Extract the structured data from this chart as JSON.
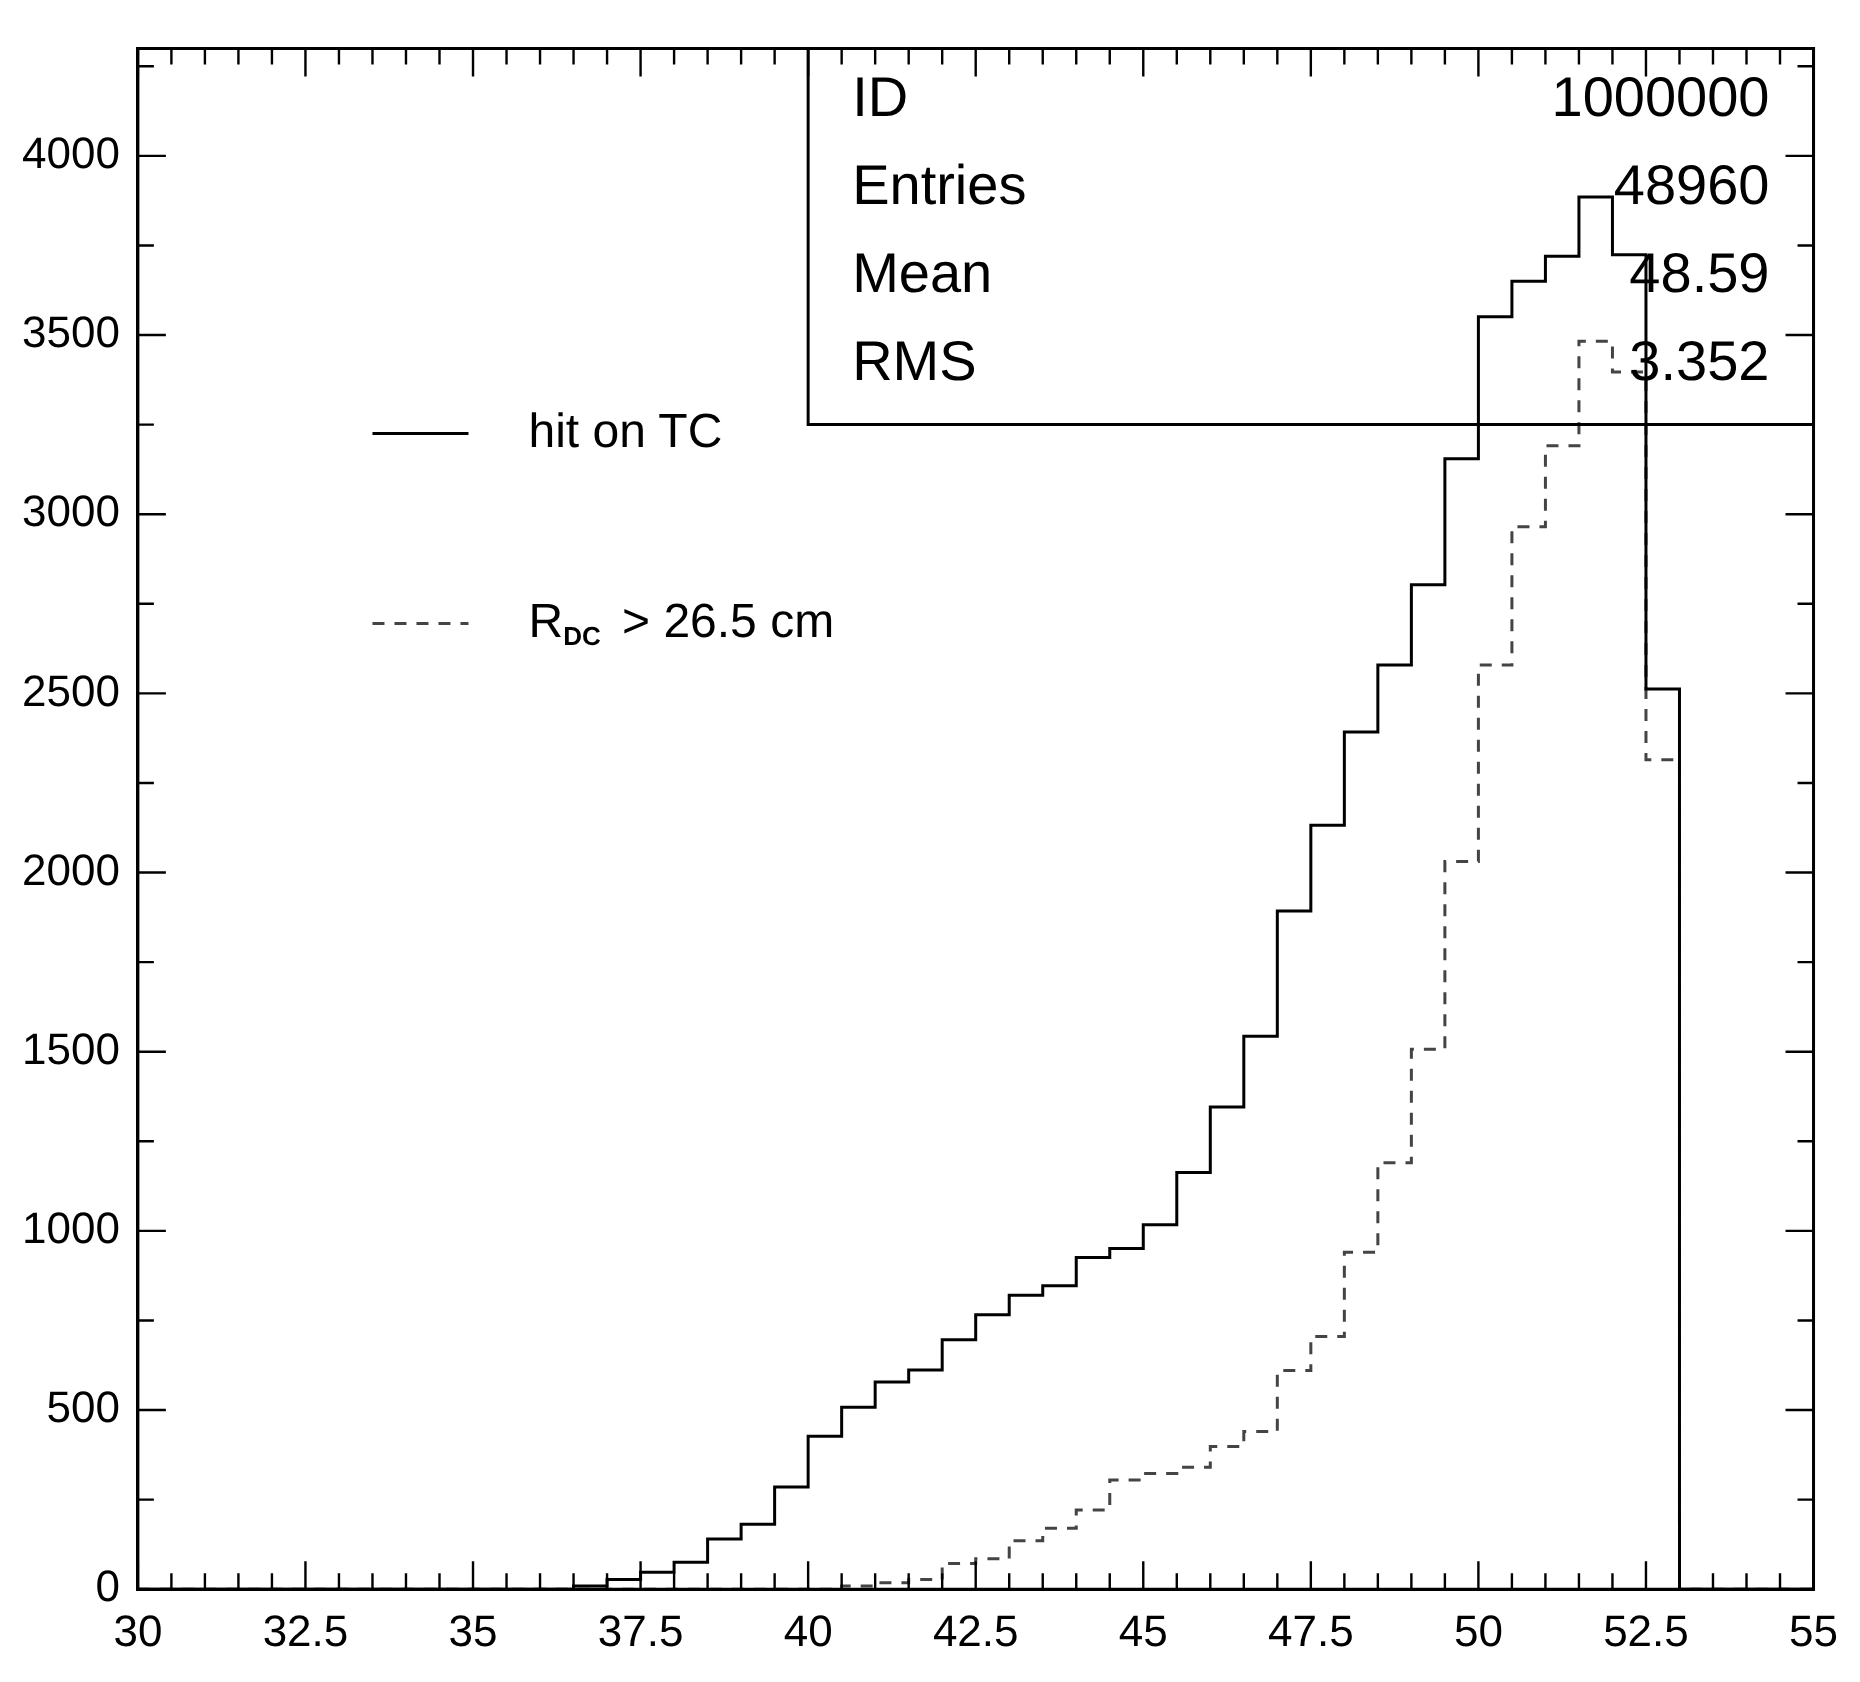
{
  "chart_data": {
    "type": "histogram",
    "bins": [
      30,
      30.5,
      31,
      31.5,
      32,
      32.5,
      33,
      33.5,
      34,
      34.5,
      35,
      35.5,
      36,
      36.5,
      37,
      37.5,
      38,
      38.5,
      39,
      39.5,
      40,
      40.5,
      41,
      41.5,
      42,
      42.5,
      43,
      43.5,
      44,
      44.5,
      45,
      45.5,
      46,
      46.5,
      47,
      47.5,
      48,
      48.5,
      49,
      49.5,
      50,
      50.5,
      51,
      51.5,
      52,
      52.5,
      53,
      53.5,
      54,
      54.5,
      55
    ],
    "series": [
      {
        "name": "hit on TC",
        "color": "#000000",
        "line_style": "solid",
        "values": [
          0,
          0,
          0,
          0,
          0,
          0,
          0,
          0,
          0,
          0,
          0,
          0,
          0,
          9,
          27,
          47,
          75,
          140,
          181,
          285,
          427,
          508,
          578,
          612,
          696,
          766,
          820,
          847,
          926,
          951,
          1017,
          1163,
          1346,
          1543,
          1893,
          2132,
          2392,
          2579,
          2803,
          3155,
          3551,
          3650,
          3720,
          3885,
          3724,
          2512,
          0,
          0,
          0,
          0
        ]
      },
      {
        "name": "R$_{DC}$ > 26.5 cm",
        "color": "#444444",
        "line_style": "dashed",
        "values": [
          0,
          0,
          0,
          0,
          0,
          0,
          0,
          0,
          0,
          0,
          0,
          0,
          0,
          0,
          0,
          0,
          0,
          0,
          0,
          0,
          0,
          9,
          18,
          27,
          72,
          85,
          135,
          170,
          221,
          305,
          323,
          340,
          398,
          440,
          610,
          705,
          940,
          1190,
          1507,
          2031,
          2579,
          2965,
          3191,
          3483,
          3397,
          2315,
          0,
          0,
          0,
          0
        ]
      }
    ],
    "xlim": [
      30,
      55
    ],
    "xticks": [
      30,
      {
        "value": 30.5,
        "label": null
      },
      {
        "value": 31,
        "label": null
      },
      {
        "value": 31.5,
        "label": null
      },
      {
        "value": 32,
        "label": null
      },
      32.5,
      {
        "value": 33,
        "label": null
      },
      {
        "value": 33.5,
        "label": null
      },
      {
        "value": 34,
        "label": null
      },
      {
        "value": 34.5,
        "label": null
      },
      35,
      {
        "value": 35.5,
        "label": null
      },
      {
        "value": 36,
        "label": null
      },
      {
        "value": 36.5,
        "label": null
      },
      {
        "value": 37,
        "label": null
      },
      37.5,
      {
        "value": 38,
        "label": null
      },
      {
        "value": 38.5,
        "label": null
      },
      {
        "value": 39,
        "label": null
      },
      {
        "value": 39.5,
        "label": null
      },
      40,
      {
        "value": 40.5,
        "label": null
      },
      {
        "value": 41,
        "label": null
      },
      {
        "value": 41.5,
        "label": null
      },
      {
        "value": 42,
        "label": null
      },
      42.5,
      {
        "value": 43,
        "label": null
      },
      {
        "value": 43.5,
        "label": null
      },
      {
        "value": 44,
        "label": null
      },
      {
        "value": 44.5,
        "label": null
      },
      45,
      {
        "value": 45.5,
        "label": null
      },
      {
        "value": 46,
        "label": null
      },
      {
        "value": 46.5,
        "label": null
      },
      {
        "value": 47,
        "label": null
      },
      47.5,
      {
        "value": 48,
        "label": null
      },
      {
        "value": 48.5,
        "label": null
      },
      {
        "value": 49,
        "label": null
      },
      {
        "value": 49.5,
        "label": null
      },
      50,
      {
        "value": 50.5,
        "label": null
      },
      {
        "value": 51,
        "label": null
      },
      {
        "value": 51.5,
        "label": null
      },
      {
        "value": 52,
        "label": null
      },
      52.5,
      {
        "value": 53,
        "label": null
      },
      {
        "value": 53.5,
        "label": null
      },
      {
        "value": 54,
        "label": null
      },
      {
        "value": 54.5,
        "label": null
      },
      55
    ],
    "ylim": [
      0,
      4300
    ],
    "yticks": [
      0,
      {
        "value": 250,
        "label": null
      },
      500,
      {
        "value": 750,
        "label": null
      },
      1000,
      {
        "value": 1250,
        "label": null
      },
      1500,
      {
        "value": 1750,
        "label": null
      },
      2000,
      {
        "value": 2250,
        "label": null
      },
      2500,
      {
        "value": 2750,
        "label": null
      },
      3000,
      {
        "value": 3250,
        "label": null
      },
      3500,
      {
        "value": 3750,
        "label": null
      },
      4000,
      {
        "value": 4250,
        "label": null
      }
    ],
    "grid": false,
    "legend": "top left",
    "annotations": [
      "ID 1000000",
      "Entries 48960",
      "Mean 48.59",
      "RMS 3.352"
    ]
  }
}
